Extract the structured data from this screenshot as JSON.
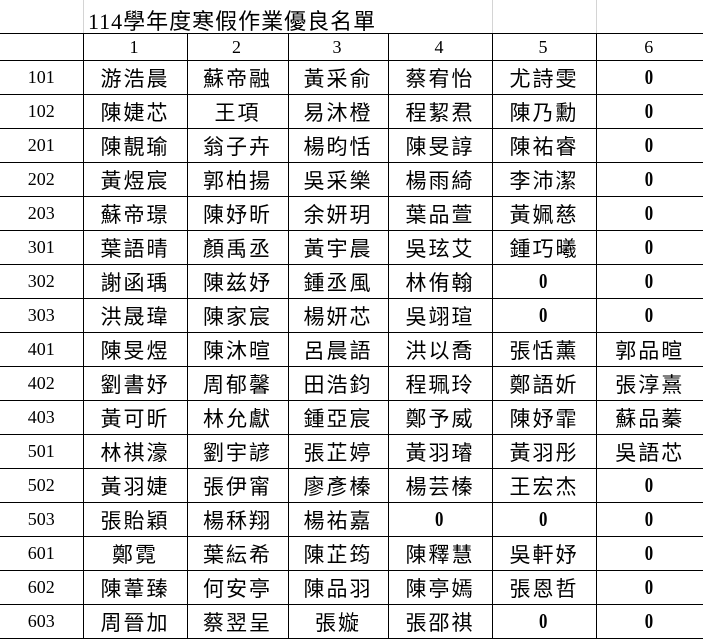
{
  "title": "114學年度寒假作業優良名單",
  "columns": [
    "",
    "1",
    "2",
    "3",
    "4",
    "5",
    "6"
  ],
  "rows": [
    {
      "class": "101",
      "names": [
        "游浩晨",
        "蘇帝融",
        "黃采俞",
        "蔡宥怡",
        "尤詩雯",
        "0"
      ]
    },
    {
      "class": "102",
      "names": [
        "陳婕芯",
        "王項",
        "易沐橙",
        "程絜焄",
        "陳乃勳",
        "0"
      ]
    },
    {
      "class": "201",
      "names": [
        "陳靚瑜",
        "翁子卉",
        "楊昀恬",
        "陳旻諄",
        "陳祐睿",
        "0"
      ]
    },
    {
      "class": "202",
      "names": [
        "黃煜宸",
        "郭柏揚",
        "吳采樂",
        "楊雨綺",
        "李沛潔",
        "0"
      ]
    },
    {
      "class": "203",
      "names": [
        "蘇帝璟",
        "陳妤昕",
        "余妍玥",
        "葉品萱",
        "黃姵慈",
        "0"
      ]
    },
    {
      "class": "301",
      "names": [
        "葉語晴",
        "顏禹丞",
        "黃宇晨",
        "吳玹艾",
        "鍾巧曦",
        "0"
      ]
    },
    {
      "class": "302",
      "names": [
        "謝函瑀",
        "陳兹妤",
        "鍾丞風",
        "林侑翰",
        "0",
        "0"
      ]
    },
    {
      "class": "303",
      "names": [
        "洪晟瑋",
        "陳家宸",
        "楊妍芯",
        "吳翊瑄",
        "0",
        "0"
      ]
    },
    {
      "class": "401",
      "names": [
        "陳旻煜",
        "陳沐暄",
        "呂晨語",
        "洪以喬",
        "張恬薰",
        "郭品暄"
      ]
    },
    {
      "class": "402",
      "names": [
        "劉書妤",
        "周郁馨",
        "田浩鈞",
        "程珮玲",
        "鄭語妡",
        "張淳熹"
      ]
    },
    {
      "class": "403",
      "names": [
        "黃可昕",
        "林允獻",
        "鍾亞宸",
        "鄭予威",
        "陳妤霏",
        "蘇品蓁"
      ]
    },
    {
      "class": "501",
      "names": [
        "林祺濠",
        "劉宇諺",
        "張芷婷",
        "黃羽璿",
        "黃羽彤",
        "吳語芯"
      ]
    },
    {
      "class": "502",
      "names": [
        "黃羽婕",
        "張伊甯",
        "廖彥榛",
        "楊芸榛",
        "王宏杰",
        "0"
      ]
    },
    {
      "class": "503",
      "names": [
        "張貽穎",
        "楊秝翔",
        "楊祐嘉",
        "0",
        "0",
        "0"
      ]
    },
    {
      "class": "601",
      "names": [
        "鄭霓",
        "葉紜希",
        "陳芷筠",
        "陳釋慧",
        "吳軒妤",
        "0"
      ]
    },
    {
      "class": "602",
      "names": [
        "陳葦臻",
        "何安亭",
        "陳品羽",
        "陳亭嫣",
        "張恩哲",
        "0"
      ]
    },
    {
      "class": "603",
      "names": [
        "周晉加",
        "蔡翌呈",
        "張嫙",
        "張邵祺",
        "0",
        "0"
      ]
    }
  ]
}
